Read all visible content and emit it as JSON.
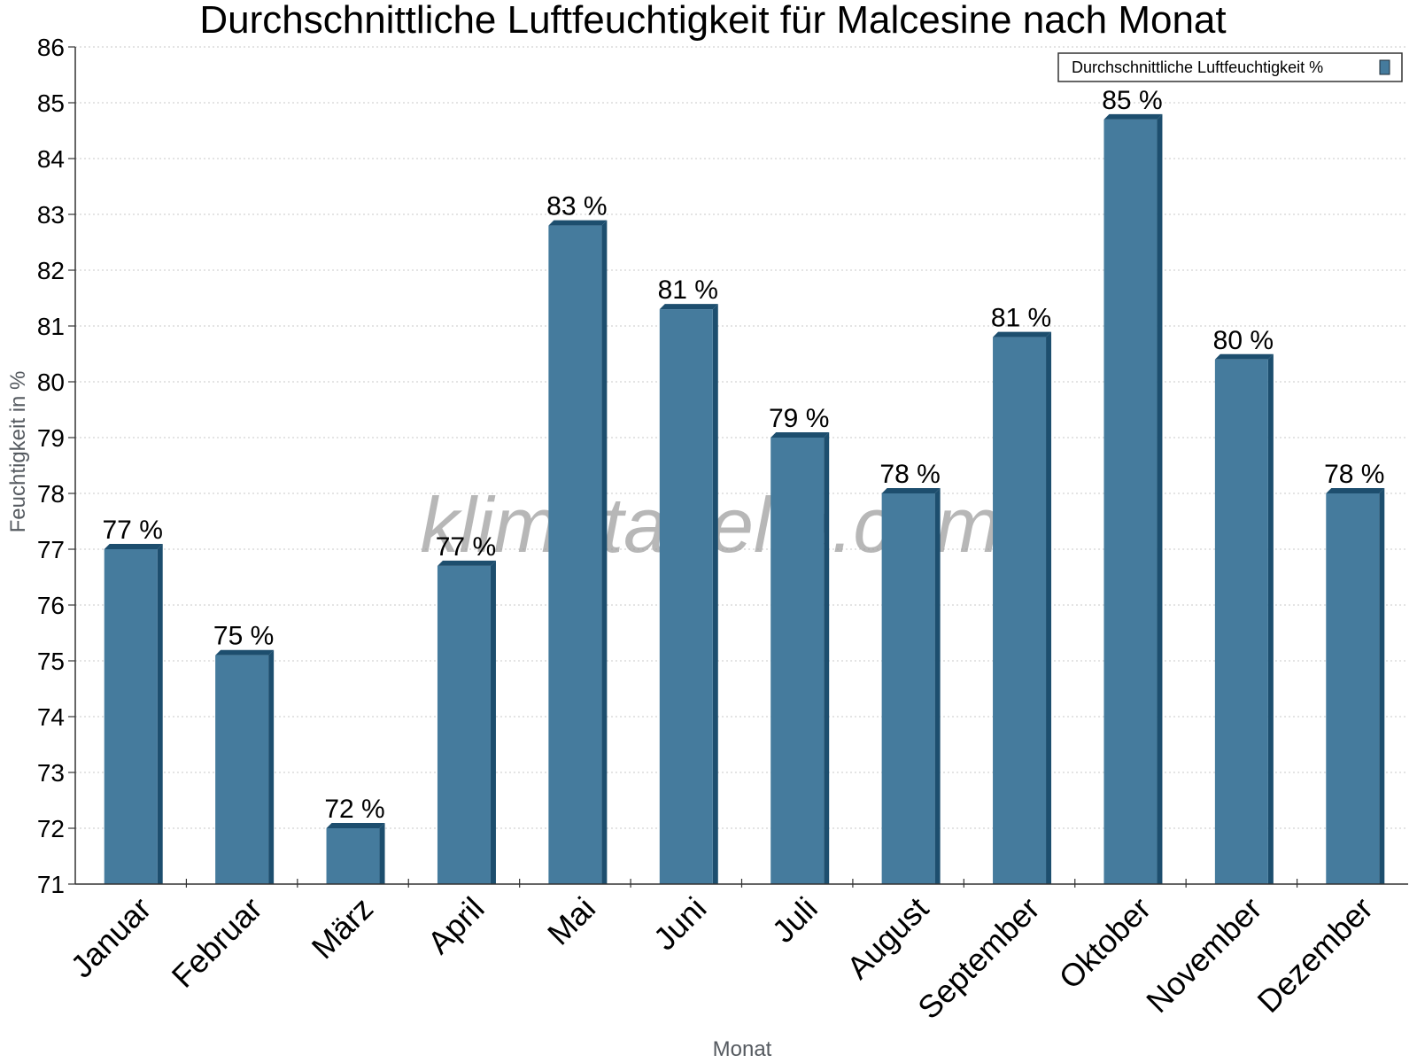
{
  "chart_data": {
    "type": "bar",
    "title": "Durchschnittliche Luftfeuchtigkeit für Malcesine nach Monat",
    "xlabel": "Monat",
    "ylabel": "Feuchtigkeit in %",
    "ylim": [
      71,
      86
    ],
    "yticks": [
      71,
      72,
      73,
      74,
      75,
      76,
      77,
      78,
      79,
      80,
      81,
      82,
      83,
      84,
      85,
      86
    ],
    "grid": true,
    "legend_position": "top-right",
    "categories": [
      "Januar",
      "Februar",
      "März",
      "April",
      "Mai",
      "Juni",
      "Juli",
      "August",
      "September",
      "Oktober",
      "November",
      "Dezember"
    ],
    "series": [
      {
        "name": "Durchschnittliche Luftfeuchtigkeit %",
        "values": [
          77,
          75.1,
          72,
          76.7,
          82.8,
          81.3,
          79,
          78,
          80.8,
          84.7,
          80.4,
          78
        ],
        "data_labels": [
          "77 %",
          "75 %",
          "72 %",
          "77 %",
          "83 %",
          "81 %",
          "79 %",
          "78 %",
          "81 %",
          "85 %",
          "80 %",
          "78 %"
        ],
        "color": "#457b9d",
        "side_color": "#1d4e6e"
      }
    ],
    "watermark": "klimatabelle.com"
  }
}
